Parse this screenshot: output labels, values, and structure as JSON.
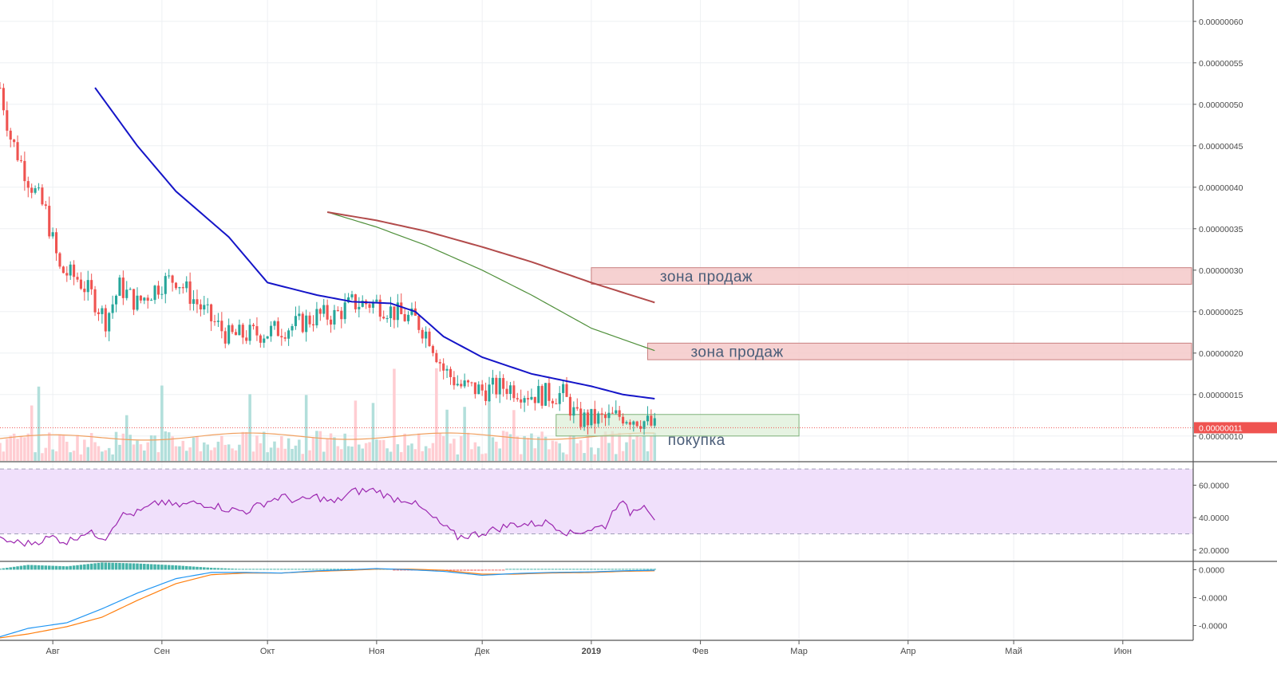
{
  "colors": {
    "background": "#ffffff",
    "grid": "#eef0f3",
    "bullish": "#26a69a",
    "bearish": "#ef5350",
    "vol_bull": "#b2dfdb",
    "vol_bear": "#ffcdd2",
    "ma_fast": "#1515c8",
    "ma_slow_red": "#b24b4b",
    "ma_slow_green": "#4f8f3a",
    "vol_ma": "#f0a060",
    "rsi_line": "#9c27b0",
    "rsi_band": "#f0e0fb",
    "macd_line": "#2196f3",
    "signal_line": "#ff7f0e",
    "hist_pos": "#26a69a",
    "hist_neg": "#ef5350",
    "sell_zone_fill": "#f4c9c9",
    "sell_zone_stroke": "#c98080",
    "buy_zone_fill": "#d9ecd3",
    "buy_zone_stroke": "#7fb27a",
    "price_tag": "#ef5350",
    "axis_text": "#4a4a4a",
    "annotation_text": "#4a5d78"
  },
  "chart_data": {
    "type": "candlestick",
    "x_range": [
      "2018-07-17",
      "2019-06-21"
    ],
    "price_range": [
      7e-08,
      6.2e-07
    ],
    "x_ticks": [
      {
        "date": "2018-08-01",
        "label": "Авг"
      },
      {
        "date": "2018-09-01",
        "label": "Сен"
      },
      {
        "date": "2018-10-01",
        "label": "Окт"
      },
      {
        "date": "2018-11-01",
        "label": "Ноя"
      },
      {
        "date": "2018-12-01",
        "label": "Дек"
      },
      {
        "date": "2019-01-01",
        "label": "2019"
      },
      {
        "date": "2019-02-01",
        "label": "Фев"
      },
      {
        "date": "2019-03-01",
        "label": "Мар"
      },
      {
        "date": "2019-04-01",
        "label": "Апр"
      },
      {
        "date": "2019-05-01",
        "label": "Май"
      },
      {
        "date": "2019-06-01",
        "label": "Июн"
      }
    ],
    "y_ticks": [
      "0.00000060",
      "0.00000055",
      "0.00000050",
      "0.00000045",
      "0.00000040",
      "0.00000035",
      "0.00000030",
      "0.00000025",
      "0.00000020",
      "0.00000015",
      "0.00000010"
    ],
    "last_price": "0.00000011",
    "price_anchors": [
      [
        "2018-07-17",
        5.2e-07
      ],
      [
        "2018-07-20",
        4.6e-07
      ],
      [
        "2018-07-25",
        4.1e-07
      ],
      [
        "2018-07-30",
        3.7e-07
      ],
      [
        "2018-08-03",
        3e-07
      ],
      [
        "2018-08-08",
        2.9e-07
      ],
      [
        "2018-08-12",
        2.7e-07
      ],
      [
        "2018-08-16",
        2.4e-07
      ],
      [
        "2018-08-20",
        2.8e-07
      ],
      [
        "2018-08-25",
        2.6e-07
      ],
      [
        "2018-09-01",
        2.85e-07
      ],
      [
        "2018-09-05",
        2.9e-07
      ],
      [
        "2018-09-10",
        2.65e-07
      ],
      [
        "2018-09-15",
        2.4e-07
      ],
      [
        "2018-09-20",
        2.2e-07
      ],
      [
        "2018-10-01",
        2.25e-07
      ],
      [
        "2018-10-10",
        2.35e-07
      ],
      [
        "2018-10-15",
        2.45e-07
      ],
      [
        "2018-10-20",
        2.45e-07
      ],
      [
        "2018-10-25",
        2.6e-07
      ],
      [
        "2018-11-01",
        2.6e-07
      ],
      [
        "2018-11-08",
        2.45e-07
      ],
      [
        "2018-11-12",
        2.4e-07
      ],
      [
        "2018-11-16",
        2.2e-07
      ],
      [
        "2018-11-20",
        1.8e-07
      ],
      [
        "2018-11-25",
        1.6e-07
      ],
      [
        "2018-12-01",
        1.55e-07
      ],
      [
        "2018-12-08",
        1.6e-07
      ],
      [
        "2018-12-15",
        1.5e-07
      ],
      [
        "2018-12-24",
        1.5e-07
      ],
      [
        "2018-12-28",
        1.2e-07
      ],
      [
        "2019-01-05",
        1.2e-07
      ],
      [
        "2019-01-10",
        1.25e-07
      ],
      [
        "2019-01-15",
        1.2e-07
      ],
      [
        "2019-01-19",
        1.1e-07
      ]
    ],
    "volume_ma_level": 0.25,
    "ma_fast_points": [
      [
        "2018-08-13",
        5.2e-07
      ],
      [
        "2018-08-25",
        4.5e-07
      ],
      [
        "2018-09-05",
        3.95e-07
      ],
      [
        "2018-09-20",
        3.4e-07
      ],
      [
        "2018-10-01",
        2.85e-07
      ],
      [
        "2018-10-15",
        2.7e-07
      ],
      [
        "2018-10-25",
        2.62e-07
      ],
      [
        "2018-11-05",
        2.6e-07
      ],
      [
        "2018-11-12",
        2.5e-07
      ],
      [
        "2018-11-20",
        2.2e-07
      ],
      [
        "2018-12-01",
        1.95e-07
      ],
      [
        "2018-12-15",
        1.75e-07
      ],
      [
        "2019-01-01",
        1.6e-07
      ],
      [
        "2019-01-10",
        1.5e-07
      ],
      [
        "2019-01-19",
        1.45e-07
      ]
    ],
    "ma_slow_red_points": [
      [
        "2018-10-18",
        3.7e-07
      ],
      [
        "2018-11-01",
        3.6e-07
      ],
      [
        "2018-11-15",
        3.47e-07
      ],
      [
        "2018-12-01",
        3.28e-07
      ],
      [
        "2018-12-15",
        3.1e-07
      ],
      [
        "2019-01-01",
        2.85e-07
      ],
      [
        "2019-01-19",
        2.61e-07
      ]
    ],
    "ma_slow_green_points": [
      [
        "2018-10-18",
        3.7e-07
      ],
      [
        "2018-11-01",
        3.52e-07
      ],
      [
        "2018-11-15",
        3.3e-07
      ],
      [
        "2018-12-01",
        3e-07
      ],
      [
        "2018-12-15",
        2.7e-07
      ],
      [
        "2019-01-01",
        2.3e-07
      ],
      [
        "2019-01-19",
        2.03e-07
      ]
    ],
    "zones": [
      {
        "type": "sell",
        "label": "зона продаж",
        "start": "2019-01-01",
        "end": "2019-06-21",
        "top": 3.03e-07,
        "bottom": 2.83e-07
      },
      {
        "type": "sell",
        "label": "зона продаж",
        "start": "2019-01-17",
        "end": "2019-06-21",
        "top": 2.12e-07,
        "bottom": 1.92e-07
      },
      {
        "type": "buy",
        "label": "покупка",
        "start": "2018-12-22",
        "end": "2019-03-01",
        "top": 1.26e-07,
        "bottom": 1e-07
      }
    ],
    "rsi": {
      "y_ticks": [
        "60.0000",
        "40.0000",
        "20.0000"
      ],
      "range": [
        14,
        73
      ],
      "band": [
        30,
        70
      ],
      "anchors": [
        [
          "2018-07-17",
          26
        ],
        [
          "2018-07-25",
          24
        ],
        [
          "2018-08-01",
          28
        ],
        [
          "2018-08-05",
          25
        ],
        [
          "2018-08-10",
          31
        ],
        [
          "2018-08-16",
          28
        ],
        [
          "2018-08-20",
          41
        ],
        [
          "2018-08-25",
          43
        ],
        [
          "2018-09-01",
          50
        ],
        [
          "2018-09-05",
          47
        ],
        [
          "2018-09-10",
          49
        ],
        [
          "2018-09-15",
          48
        ],
        [
          "2018-09-20",
          45
        ],
        [
          "2018-09-25",
          44
        ],
        [
          "2018-10-01",
          50
        ],
        [
          "2018-10-05",
          53
        ],
        [
          "2018-10-10",
          50
        ],
        [
          "2018-10-15",
          53
        ],
        [
          "2018-10-20",
          49
        ],
        [
          "2018-10-25",
          56
        ],
        [
          "2018-11-01",
          57
        ],
        [
          "2018-11-05",
          52
        ],
        [
          "2018-11-10",
          51
        ],
        [
          "2018-11-14",
          45
        ],
        [
          "2018-11-18",
          38
        ],
        [
          "2018-11-24",
          28
        ],
        [
          "2018-11-30",
          30
        ],
        [
          "2018-12-05",
          33
        ],
        [
          "2018-12-10",
          36
        ],
        [
          "2018-12-15",
          36
        ],
        [
          "2018-12-20",
          37
        ],
        [
          "2018-12-26",
          30
        ],
        [
          "2019-01-01",
          33
        ],
        [
          "2019-01-05",
          35
        ],
        [
          "2019-01-09",
          51
        ],
        [
          "2019-01-12",
          43
        ],
        [
          "2019-01-16",
          49
        ],
        [
          "2019-01-19",
          40
        ]
      ]
    },
    "macd": {
      "y_ticks": [
        "0.0000",
        "-0.0000",
        "-0.0000"
      ],
      "range": [
        -1.25,
        0.12
      ],
      "macd_anchors": [
        [
          "2018-07-17",
          -1.2
        ],
        [
          "2018-07-25",
          -1.05
        ],
        [
          "2018-08-05",
          -0.95
        ],
        [
          "2018-08-15",
          -0.7
        ],
        [
          "2018-08-25",
          -0.42
        ],
        [
          "2018-09-05",
          -0.16
        ],
        [
          "2018-09-15",
          -0.05
        ],
        [
          "2018-09-25",
          -0.05
        ],
        [
          "2018-10-05",
          -0.06
        ],
        [
          "2018-10-15",
          -0.02
        ],
        [
          "2018-10-25",
          0.0
        ],
        [
          "2018-11-01",
          0.02
        ],
        [
          "2018-11-10",
          0.0
        ],
        [
          "2018-11-20",
          -0.03
        ],
        [
          "2018-12-01",
          -0.1
        ],
        [
          "2018-12-10",
          -0.07
        ],
        [
          "2018-12-20",
          -0.05
        ],
        [
          "2019-01-01",
          -0.04
        ],
        [
          "2019-01-10",
          -0.02
        ],
        [
          "2019-01-19",
          -0.01
        ]
      ],
      "signal_anchors": [
        [
          "2018-07-17",
          -1.22
        ],
        [
          "2018-07-25",
          -1.15
        ],
        [
          "2018-08-05",
          -1.02
        ],
        [
          "2018-08-15",
          -0.85
        ],
        [
          "2018-08-25",
          -0.55
        ],
        [
          "2018-09-05",
          -0.25
        ],
        [
          "2018-09-15",
          -0.09
        ],
        [
          "2018-09-25",
          -0.06
        ],
        [
          "2018-10-05",
          -0.06
        ],
        [
          "2018-10-15",
          -0.03
        ],
        [
          "2018-10-25",
          -0.01
        ],
        [
          "2018-11-01",
          0.01
        ],
        [
          "2018-11-10",
          0.01
        ],
        [
          "2018-11-20",
          -0.01
        ],
        [
          "2018-12-01",
          -0.08
        ],
        [
          "2018-12-10",
          -0.08
        ],
        [
          "2018-12-20",
          -0.06
        ],
        [
          "2019-01-01",
          -0.05
        ],
        [
          "2019-01-10",
          -0.03
        ],
        [
          "2019-01-19",
          -0.02
        ]
      ]
    }
  }
}
